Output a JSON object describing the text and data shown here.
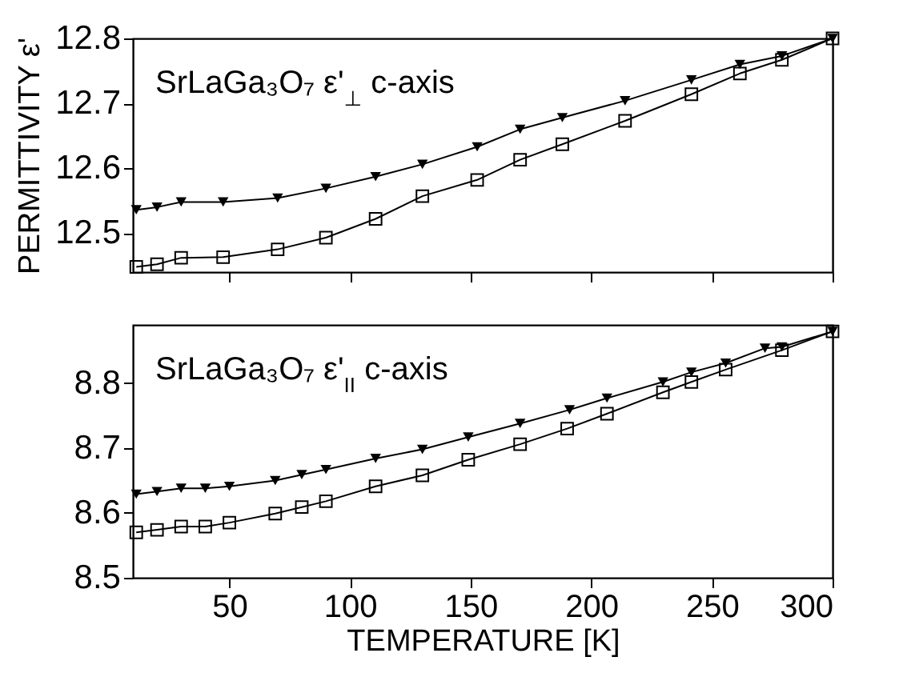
{
  "chart_data": [
    {
      "type": "line",
      "ylabel": "PERMITTIVITY ε'",
      "annotations": [
        "SrLaGa₃O₇ ε'$_{⊥}$ c-axis"
      ],
      "xlim": [
        10,
        300
      ],
      "xticks": [
        50,
        100,
        150,
        200,
        250,
        300
      ],
      "ylim": [
        12.44,
        12.8
      ],
      "yticks": [
        12.5,
        12.6,
        12.7,
        12.8
      ],
      "tick_labels": "y",
      "series": [
        {
          "color": "#000000",
          "marker": "triangle",
          "x": [
            11.4,
            20,
            30,
            47.4,
            70,
            90,
            110.6,
            130,
            152.7,
            170.5,
            188,
            214,
            241.5,
            261.6,
            279,
            300
          ],
          "values": [
            12.536,
            12.54,
            12.548,
            12.548,
            12.554,
            12.569,
            12.587,
            12.606,
            12.633,
            12.66,
            12.678,
            12.704,
            12.736,
            12.76,
            12.773,
            12.8
          ]
        },
        {
          "color": "#000000",
          "marker": "square",
          "x": [
            11.4,
            20,
            30,
            47.4,
            70,
            90,
            110.6,
            130,
            152.7,
            170.5,
            188,
            214,
            241.5,
            261.6,
            279,
            300
          ],
          "values": [
            12.448,
            12.452,
            12.462,
            12.463,
            12.475,
            12.493,
            12.522,
            12.557,
            12.582,
            12.613,
            12.637,
            12.673,
            12.714,
            12.746,
            12.767,
            12.8
          ]
        }
      ]
    },
    {
      "type": "line",
      "xlabel": "TEMPERATURE  [K]",
      "annotations": [
        "SrLaGa₃O₇ ε'$_{II}$ c-axis"
      ],
      "xlim": [
        10,
        300
      ],
      "xticks": [
        50,
        100,
        150,
        200,
        250,
        300
      ],
      "ylim": [
        8.5,
        8.89
      ],
      "yticks": [
        8.5,
        8.6,
        8.7,
        8.8
      ],
      "series": [
        {
          "color": "#000000",
          "marker": "triangle",
          "x": [
            11.4,
            20,
            30,
            40,
            50,
            69,
            80,
            90,
            110.6,
            130,
            149,
            170.5,
            191,
            206.5,
            229.7,
            241.5,
            255.7,
            272,
            279,
            300
          ],
          "values": [
            8.629,
            8.633,
            8.638,
            8.638,
            8.641,
            8.65,
            8.659,
            8.667,
            8.684,
            8.698,
            8.717,
            8.738,
            8.759,
            8.777,
            8.802,
            8.817,
            8.831,
            8.854,
            8.856,
            8.88
          ]
        },
        {
          "color": "#000000",
          "marker": "square",
          "x": [
            11.4,
            20,
            30,
            40,
            50,
            69,
            80,
            90,
            110.6,
            130,
            149,
            170.5,
            190,
            206.5,
            229.7,
            241.5,
            255.7,
            279,
            300
          ],
          "values": [
            8.57,
            8.574,
            8.579,
            8.579,
            8.585,
            8.599,
            8.609,
            8.618,
            8.641,
            8.658,
            8.682,
            8.706,
            8.73,
            8.753,
            8.786,
            8.802,
            8.821,
            8.851,
            8.88
          ]
        }
      ]
    }
  ]
}
